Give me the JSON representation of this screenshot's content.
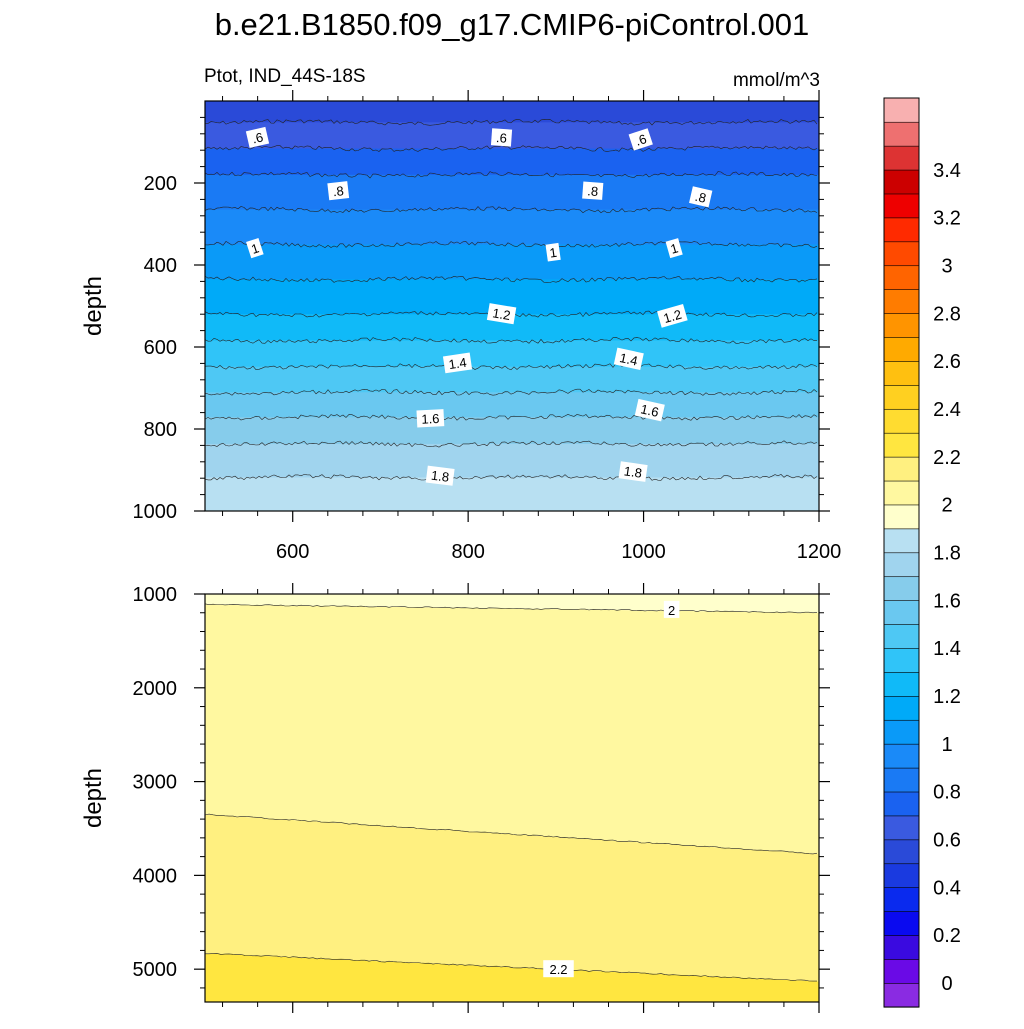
{
  "chart_data": {
    "title": "b.e21.B1850.f09_g17.CMIP6-piControl.001",
    "subtitle_left": "Ptot, IND_44S-18S",
    "subtitle_right": "mmol/m^3",
    "type": "contour",
    "panels": [
      {
        "name": "upper",
        "ylabel": "depth",
        "xlim": [
          500,
          1200
        ],
        "ylim": [
          1000,
          0
        ],
        "x_ticks": [
          600,
          800,
          1000,
          1200
        ],
        "x_tick_labels": [
          "600",
          "800",
          "1000",
          "1200"
        ],
        "y_ticks": [
          200,
          400,
          600,
          800,
          1000
        ],
        "y_tick_labels": [
          "200",
          "400",
          "600",
          "800",
          "1000"
        ],
        "depth_profile": [
          {
            "depth": 20,
            "value": 0.55
          },
          {
            "depth": 180,
            "value": 0.8
          },
          {
            "depth": 350,
            "value": 1.0
          },
          {
            "depth": 520,
            "value": 1.2
          },
          {
            "depth": 680,
            "value": 1.45
          },
          {
            "depth": 820,
            "value": 1.68
          },
          {
            "depth": 1000,
            "value": 1.9
          }
        ],
        "contour_labels": [
          {
            "text": ".6",
            "x": 560,
            "depth": 90
          },
          {
            "text": ".6",
            "x": 838,
            "depth": 90
          },
          {
            "text": ".6",
            "x": 997,
            "depth": 95
          },
          {
            "text": ".8",
            "x": 652,
            "depth": 220
          },
          {
            "text": ".8",
            "x": 942,
            "depth": 220
          },
          {
            "text": ".8",
            "x": 1065,
            "depth": 235
          },
          {
            "text": "1",
            "x": 557,
            "depth": 360
          },
          {
            "text": "1",
            "x": 897,
            "depth": 370
          },
          {
            "text": "1",
            "x": 1035,
            "depth": 360
          },
          {
            "text": "1.2",
            "x": 838,
            "depth": 520
          },
          {
            "text": "1.2",
            "x": 1033,
            "depth": 525
          },
          {
            "text": "1.4",
            "x": 788,
            "depth": 640
          },
          {
            "text": "1.4",
            "x": 983,
            "depth": 630
          },
          {
            "text": "1.6",
            "x": 757,
            "depth": 775
          },
          {
            "text": "1.6",
            "x": 1007,
            "depth": 755
          },
          {
            "text": "1.8",
            "x": 768,
            "depth": 915
          },
          {
            "text": "1.8",
            "x": 988,
            "depth": 905
          }
        ]
      },
      {
        "name": "lower",
        "ylabel": "depth",
        "xlim": [
          500,
          1200
        ],
        "ylim": [
          5350,
          1000
        ],
        "x_ticks": [
          600,
          800,
          1000,
          1200
        ],
        "y_ticks": [
          1000,
          2000,
          3000,
          4000,
          5000
        ],
        "y_tick_labels": [
          "1000",
          "2000",
          "3000",
          "4000",
          "5000"
        ],
        "contours": [
          {
            "level": 2.0,
            "depth_left": 1110,
            "depth_right": 1200
          },
          {
            "level": 2.1,
            "depth_left": 3350,
            "depth_right": 3770
          },
          {
            "level": 2.2,
            "depth_left": 4830,
            "depth_right": 5130
          }
        ],
        "contour_labels": [
          {
            "text": "2",
            "x": 1032,
            "depth": 1170
          },
          {
            "text": "2.2",
            "x": 903,
            "depth": 5000
          }
        ]
      }
    ],
    "colorbar": {
      "levels": [
        -0.1,
        0,
        0.1,
        0.2,
        0.3,
        0.4,
        0.5,
        0.6,
        0.7,
        0.8,
        0.9,
        1.0,
        1.1,
        1.2,
        1.3,
        1.4,
        1.5,
        1.6,
        1.7,
        1.8,
        1.9,
        2.0,
        2.1,
        2.2,
        2.3,
        2.4,
        2.5,
        2.6,
        2.7,
        2.8,
        2.9,
        3.0,
        3.1,
        3.2,
        3.3,
        3.4,
        3.5,
        3.6
      ],
      "colors": [
        "#8a2be2",
        "#6a0ae6",
        "#3a0ae0",
        "#0a0af0",
        "#0a2aee",
        "#1a3ae0",
        "#2a4ad8",
        "#3a5ae0",
        "#1a62f0",
        "#1a7af4",
        "#1a8af8",
        "#0a9af8",
        "#00aaf8",
        "#10baf8",
        "#30c4f8",
        "#4ec8f4",
        "#6ac8f0",
        "#86cceb",
        "#a0d4ee",
        "#b8e0f2",
        "#ffffcc",
        "#fff8a0",
        "#fff080",
        "#ffe640",
        "#ffdc30",
        "#ffd020",
        "#ffc010",
        "#ffaa00",
        "#ff9400",
        "#ff7c00",
        "#ff6400",
        "#ff4a00",
        "#ff2a00",
        "#ee0000",
        "#cc0000",
        "#dd3333",
        "#ee7070",
        "#f8b0b0"
      ],
      "labels": [
        "0",
        "0.2",
        "0.4",
        "0.6",
        "0.8",
        "1",
        "1.2",
        "1.4",
        "1.6",
        "1.8",
        "2",
        "2.2",
        "2.4",
        "2.6",
        "2.8",
        "3",
        "3.2",
        "3.4"
      ],
      "label_values": [
        0,
        0.2,
        0.4,
        0.6,
        0.8,
        1.0,
        1.2,
        1.4,
        1.6,
        1.8,
        2.0,
        2.2,
        2.4,
        2.6,
        2.8,
        3.0,
        3.2,
        3.4
      ]
    }
  }
}
